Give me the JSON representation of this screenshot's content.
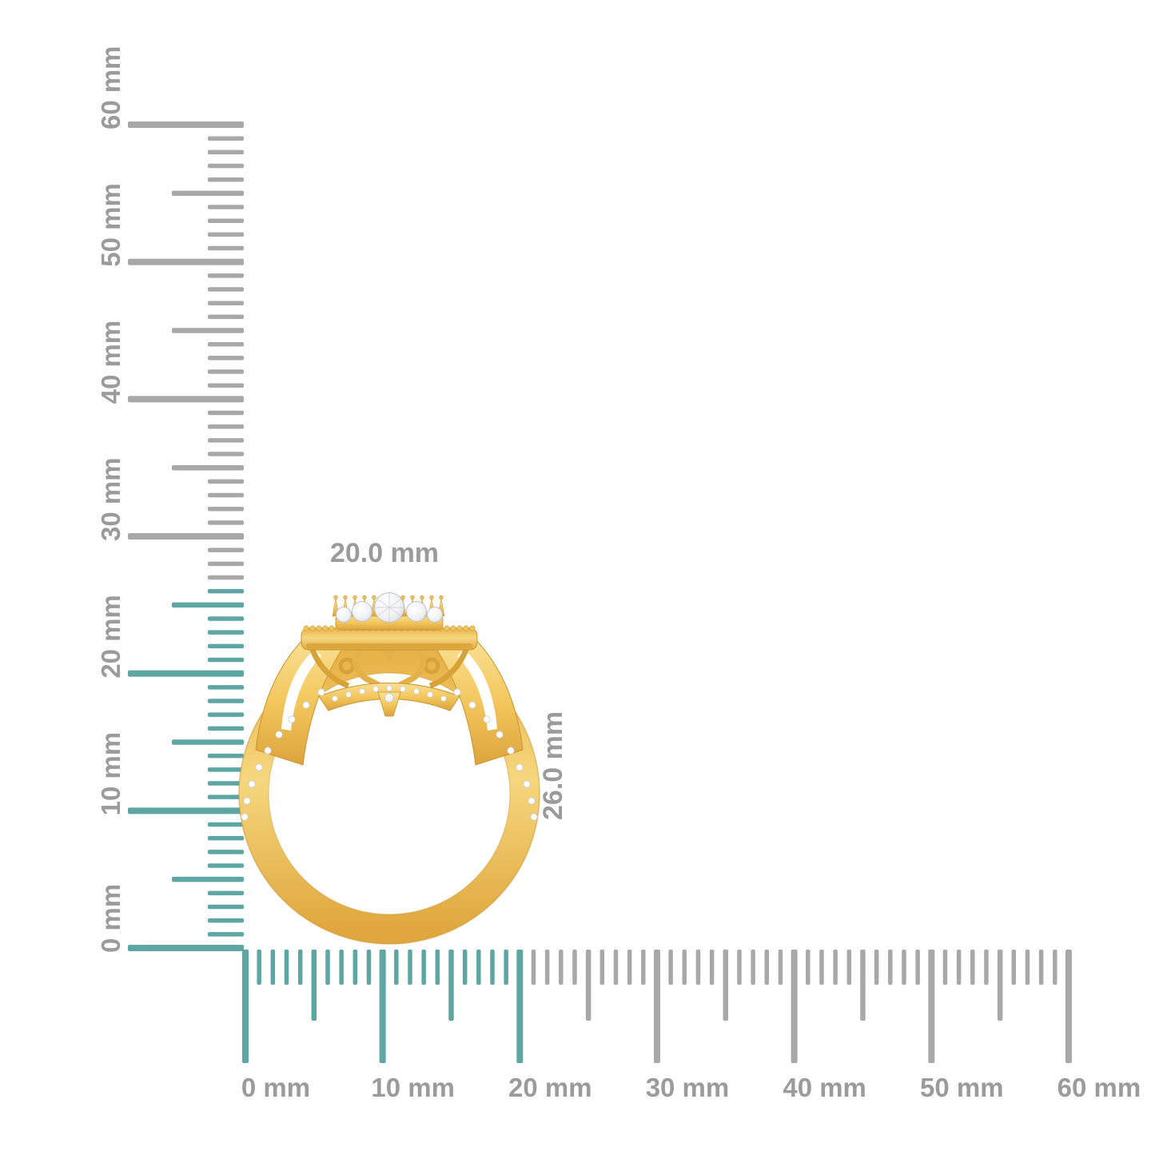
{
  "scene": {
    "background": "#FFFFFF"
  },
  "annotations": {
    "width_label": "20.0 mm",
    "height_label": "26.0 mm"
  },
  "rulers": {
    "unit": "mm",
    "max_mm": 60,
    "major_step_mm": 10,
    "medium_step_mm": 5,
    "minor_step_mm": 1,
    "colors": {
      "highlight": "#5DA6A3",
      "normal": "#A8A8A8",
      "label_text": "#9B9B9B"
    },
    "vertical": {
      "highlight_to_mm": 26,
      "labels": [
        "0 mm",
        "10 mm",
        "20 mm",
        "30 mm",
        "40 mm",
        "50 mm",
        "60 mm"
      ]
    },
    "horizontal": {
      "highlight_to_mm": 20,
      "labels": [
        "0 mm",
        "10 mm",
        "20 mm",
        "30 mm",
        "40 mm",
        "50 mm",
        "60 mm"
      ]
    }
  },
  "product": {
    "kind": "gold-diamond-halo-ring-side-view",
    "colors": {
      "gold": "#F3C75D",
      "gold_light": "#FAE196",
      "gold_dark": "#DCA43C",
      "gold_deep": "#C8952F",
      "diamond": "#F2F3F6"
    }
  }
}
